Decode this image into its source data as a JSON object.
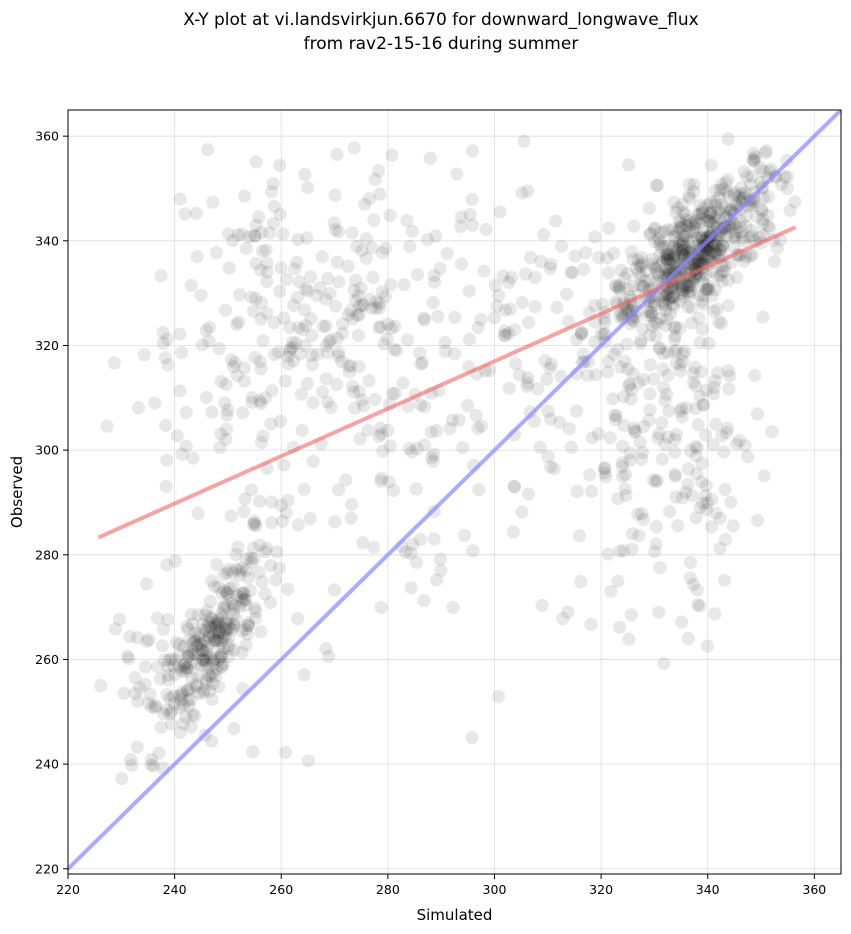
{
  "chart_data": {
    "type": "scatter",
    "title": "X-Y plot at vi.landsvirkjun.6670 for downward_longwave_flux",
    "subtitle": "from rav2-15-16 during summer",
    "xlabel": "Simulated",
    "ylabel": "Observed",
    "xlim": [
      220,
      365
    ],
    "ylim": [
      219,
      365
    ],
    "xticks": [
      220,
      240,
      260,
      280,
      300,
      320,
      340,
      360
    ],
    "yticks": [
      220,
      240,
      260,
      280,
      300,
      320,
      340,
      360
    ],
    "grid": true,
    "points_color": "#000000",
    "points_alpha": 0.09,
    "regression_line": {
      "label": "fit",
      "color": "#ee6666",
      "start": [
        225.7,
        283.3
      ],
      "end": [
        356.5,
        342.6
      ]
    },
    "identity_line": {
      "label": "1:1",
      "color": "#8888ff",
      "start": [
        219,
        219
      ],
      "end": [
        365,
        365
      ]
    },
    "scatter_clusters": [
      {
        "cx": 248,
        "cy": 265,
        "sx": 5,
        "sy": 9,
        "n": 230,
        "corr": 0.8
      },
      {
        "cx": 262,
        "cy": 325,
        "sx": 17,
        "sy": 15,
        "n": 260,
        "corr": 0.1
      },
      {
        "cx": 285,
        "cy": 300,
        "sx": 20,
        "sy": 22,
        "n": 170,
        "corr": 0.2
      },
      {
        "cx": 310,
        "cy": 325,
        "sx": 15,
        "sy": 17,
        "n": 70,
        "corr": 0.0
      },
      {
        "cx": 338,
        "cy": 338,
        "sx": 8,
        "sy": 8,
        "n": 520,
        "corr": 0.75
      },
      {
        "cx": 333,
        "cy": 300,
        "sx": 9,
        "sy": 18,
        "n": 200,
        "corr": 0.0
      },
      {
        "cx": 238,
        "cy": 255,
        "sx": 7,
        "sy": 10,
        "n": 60,
        "corr": 0.3
      }
    ]
  }
}
